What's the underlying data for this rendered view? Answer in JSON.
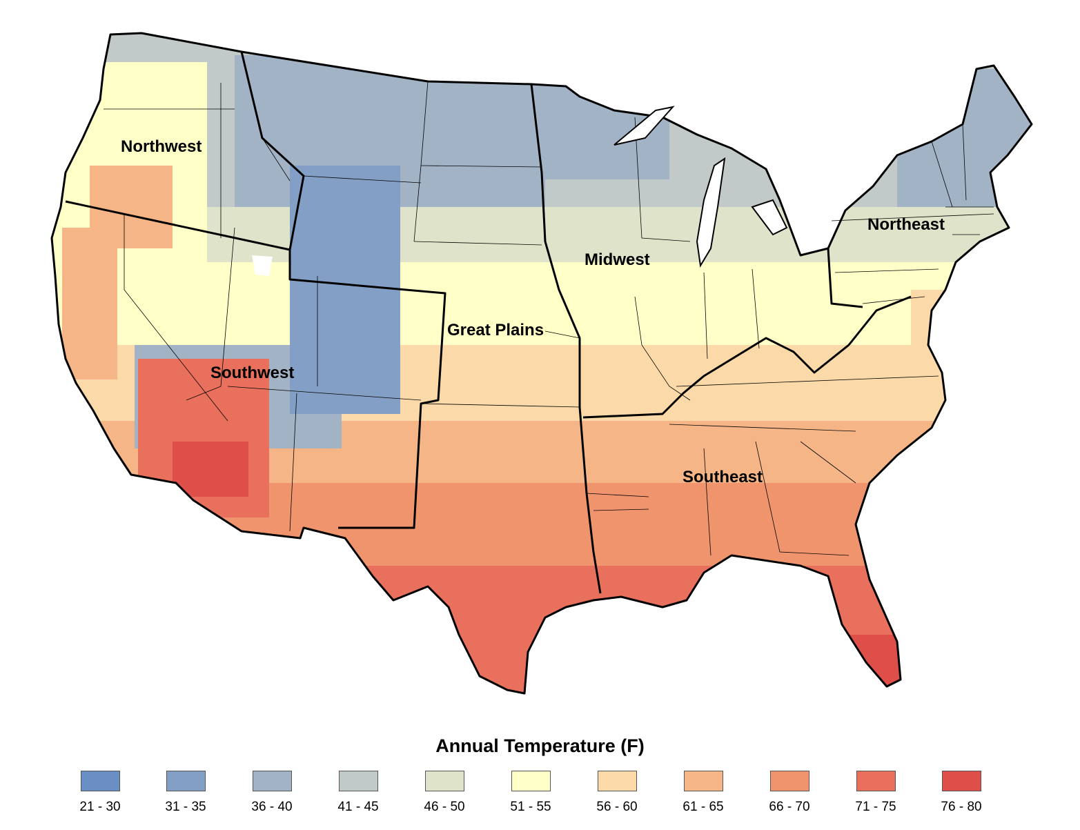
{
  "map": {
    "regions": [
      {
        "id": "northwest",
        "label": "Northwest"
      },
      {
        "id": "southwest",
        "label": "Southwest"
      },
      {
        "id": "great-plains",
        "label": "Great Plains"
      },
      {
        "id": "midwest",
        "label": "Midwest"
      },
      {
        "id": "northeast",
        "label": "Northeast"
      },
      {
        "id": "southeast",
        "label": "Southeast"
      }
    ]
  },
  "legend": {
    "title": "Annual Temperature (F)",
    "items": [
      {
        "label": "21 - 30",
        "color": "#6a8fc4"
      },
      {
        "label": "31 - 35",
        "color": "#839fc6"
      },
      {
        "label": "36 - 40",
        "color": "#a2b3c5"
      },
      {
        "label": "41 - 45",
        "color": "#c2cac9"
      },
      {
        "label": "46 - 50",
        "color": "#dfe3c9"
      },
      {
        "label": "51 - 55",
        "color": "#ffffc8"
      },
      {
        "label": "56 - 60",
        "color": "#fbd9a8"
      },
      {
        "label": "61 - 65",
        "color": "#f6b586"
      },
      {
        "label": "66 - 70",
        "color": "#f0946e"
      },
      {
        "label": "71 - 75",
        "color": "#e9705c"
      },
      {
        "label": "76 - 80",
        "color": "#de4f4a"
      }
    ]
  }
}
